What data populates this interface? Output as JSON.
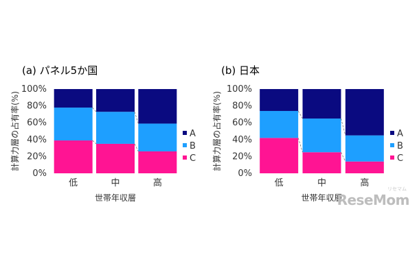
{
  "chart_data": [
    {
      "type": "bar",
      "stacked": true,
      "percent": true,
      "title": "(a) パネル5か国",
      "xlabel": "世帯年収層",
      "ylabel": "計算力層の占有率(%)",
      "categories": [
        "低",
        "中",
        "高"
      ],
      "ylim": [
        0,
        100
      ],
      "yticks": [
        "0%",
        "20%",
        "40%",
        "60%",
        "80%",
        "100%"
      ],
      "legend_position": "right",
      "connector_lines": true,
      "series": [
        {
          "name": "C",
          "color": "#ff1493",
          "values": [
            39,
            35,
            26
          ]
        },
        {
          "name": "B",
          "color": "#1e9fff",
          "values": [
            39,
            38,
            33
          ]
        },
        {
          "name": "A",
          "color": "#0a0a80",
          "values": [
            22,
            27,
            41
          ]
        }
      ]
    },
    {
      "type": "bar",
      "stacked": true,
      "percent": true,
      "title": "(b) 日本",
      "xlabel": "世帯年収層",
      "ylabel": "計算力層の占有率(%)",
      "categories": [
        "低",
        "中",
        "高"
      ],
      "ylim": [
        0,
        100
      ],
      "yticks": [
        "0%",
        "20%",
        "40%",
        "60%",
        "80%",
        "100%"
      ],
      "legend_position": "right",
      "connector_lines": true,
      "series": [
        {
          "name": "C",
          "color": "#ff1493",
          "values": [
            42,
            25,
            14
          ]
        },
        {
          "name": "B",
          "color": "#1e9fff",
          "values": [
            32,
            40,
            31
          ]
        },
        {
          "name": "A",
          "color": "#0a0a80",
          "values": [
            26,
            35,
            55
          ]
        }
      ]
    }
  ],
  "watermark": {
    "text": "ReseMom",
    "ruby": "リセマム"
  }
}
